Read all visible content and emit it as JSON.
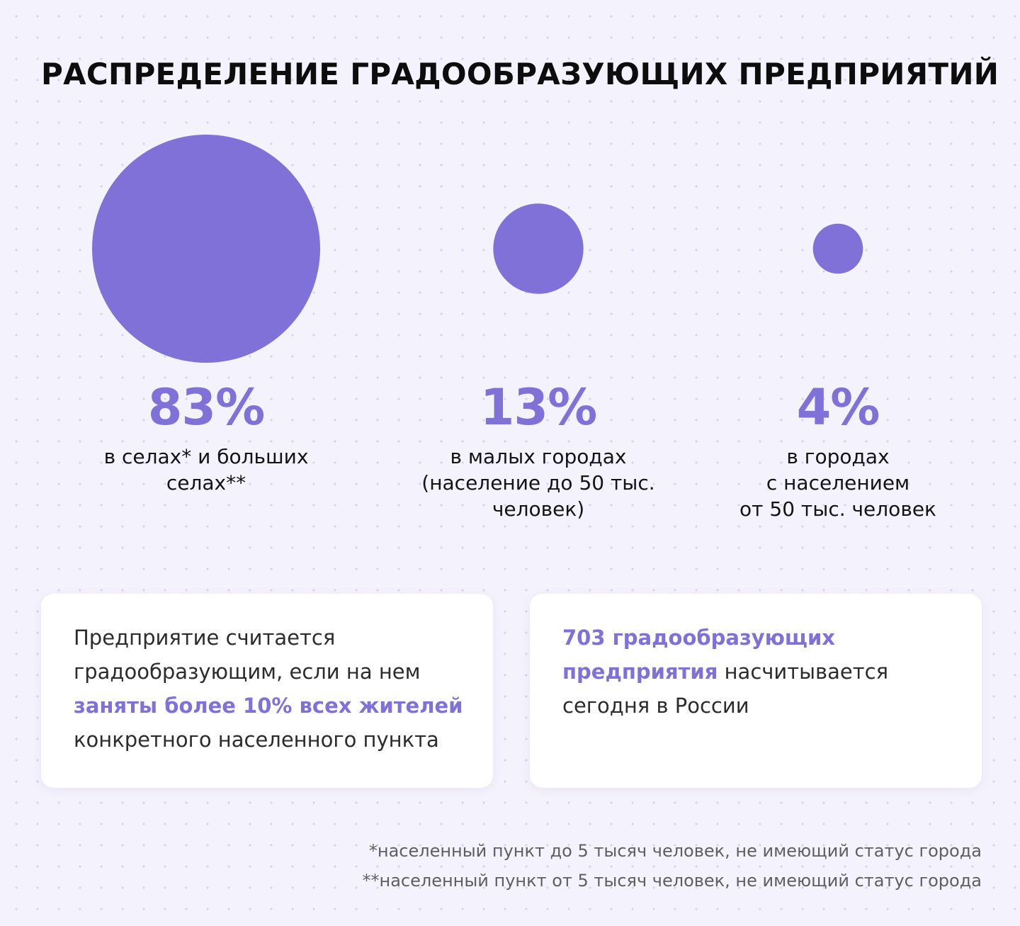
{
  "title": "РАСПРЕДЕЛЕНИЕ ГРАДООБРАЗУЮЩИХ ПРЕДПРИЯТИЙ",
  "colors": {
    "accent": "#8071d9",
    "background": "#f4f2fc",
    "card": "#ffffff",
    "text": "#111111",
    "muted": "#5f5f5f"
  },
  "chart_data": {
    "type": "bubble",
    "title": "РАСПРЕДЕЛЕНИЕ ГРАДООБРАЗУЮЩИХ ПРЕДПРИЯТИЙ",
    "unit": "%",
    "categories": [
      "в селах* и больших селах**",
      "в малых городах (население до 50 тыс. человек)",
      "в городах с населением от 50 тыс. человек"
    ],
    "values": [
      83,
      13,
      4
    ],
    "value_labels": [
      "83%",
      "13%",
      "4%"
    ]
  },
  "stats": [
    {
      "pct": "83%",
      "lines": [
        "в селах* и больших",
        "селах**"
      ]
    },
    {
      "pct": "13%",
      "lines": [
        "в малых городах",
        "(население до 50 тыс.",
        "человек)"
      ]
    },
    {
      "pct": "4%",
      "lines": [
        "в городах",
        "с населением",
        "от 50 тыс. человек"
      ]
    }
  ],
  "cards": {
    "left": {
      "line1": "Предприятие считается",
      "line2": "градообразующим, если на нем",
      "highlight": "заняты более 10% всех жителей",
      "line4": "конкретного населенного пункта"
    },
    "right": {
      "highlight1": "703 градообразующих",
      "highlight2": "предприятия",
      "rest2": " насчитывается",
      "line3": "сегодня в России"
    }
  },
  "footnotes": [
    "*населенный пункт до 5 тысяч человек, не имеющий статус города",
    "**населенный пункт от 5 тысяч человек, не имеющий статус города"
  ]
}
